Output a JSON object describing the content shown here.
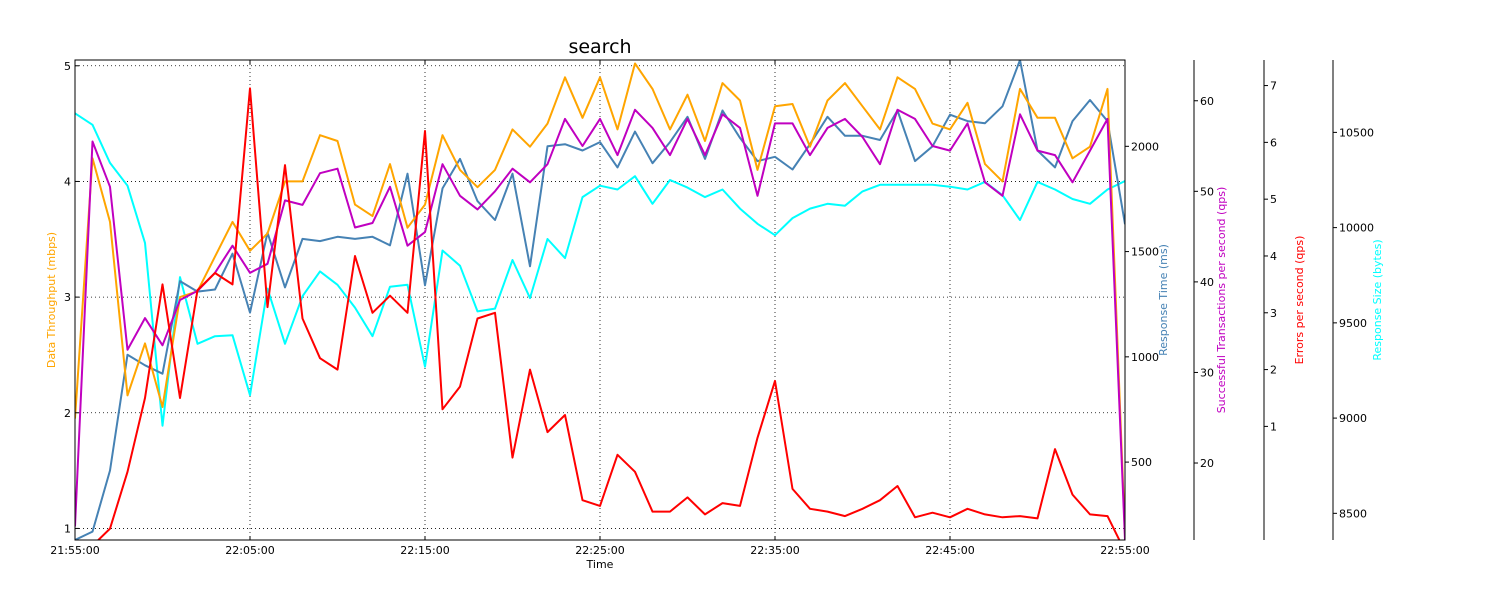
{
  "chart_data": {
    "type": "line",
    "title": "search",
    "xlabel": "Time",
    "x_ticks": [
      "21:55:00",
      "22:05:00",
      "22:15:00",
      "22:25:00",
      "22:35:00",
      "22:45:00",
      "22:55:00"
    ],
    "x_range_minutes": [
      0,
      60
    ],
    "grid": true,
    "axes": [
      {
        "id": "throughput",
        "label": "Data Throughput (mbps)",
        "color": "#ffa500",
        "range": [
          0.9,
          5.05
        ],
        "ticks": [
          "1",
          "2",
          "3",
          "4",
          "5"
        ]
      },
      {
        "id": "response_time",
        "label": "Response Time (ms)",
        "color": "#4682b4",
        "range": [
          130,
          2410
        ],
        "ticks": [
          "500",
          "1000",
          "1500",
          "2000"
        ]
      },
      {
        "id": "tps",
        "label": "Successful Transactions per second (qps)",
        "color": "#c000c0",
        "range": [
          11.5,
          64.5
        ],
        "ticks": [
          "20",
          "30",
          "40",
          "50",
          "60"
        ]
      },
      {
        "id": "errors",
        "label": "Errors per second (qps)",
        "color": "#ff0000",
        "range": [
          -1.0,
          7.45
        ],
        "ticks": [
          "1",
          "2",
          "3",
          "4",
          "5",
          "6",
          "7"
        ]
      },
      {
        "id": "size",
        "label": "Response Size (bytes)",
        "color": "#00ffff",
        "range": [
          8360,
          10880
        ],
        "ticks": [
          "8500",
          "9000",
          "9500",
          "10000",
          "10500"
        ]
      }
    ],
    "x": [
      0,
      1,
      2,
      3,
      4,
      5,
      6,
      7,
      8,
      9,
      10,
      11,
      12,
      13,
      14,
      15,
      16,
      17,
      18,
      19,
      20,
      21,
      22,
      23,
      24,
      25,
      26,
      27,
      28,
      29,
      30,
      31,
      32,
      33,
      34,
      35,
      36,
      37,
      38,
      39,
      40,
      41,
      42,
      43,
      44,
      45,
      46,
      47,
      48,
      49,
      50,
      51,
      52,
      53,
      54,
      55,
      56,
      57,
      58,
      59,
      60
    ],
    "series": [
      {
        "name": "Response Size (bytes)",
        "axis": "size",
        "color": "#00ffff",
        "values": [
          10600,
          10540,
          10340,
          10220,
          9920,
          8960,
          9740,
          9390,
          9430,
          9435,
          9120,
          9680,
          9390,
          9640,
          9770,
          9700,
          9580,
          9430,
          9690,
          9700,
          9270,
          9880,
          9800,
          9560,
          9575,
          9830,
          9630,
          9940,
          9840,
          10160,
          10220,
          10200,
          10270,
          10125,
          10250,
          10210,
          10160,
          10200,
          10100,
          10020,
          9960,
          10050,
          10100,
          10125,
          10115,
          10190,
          10225,
          10225,
          10225,
          10225,
          10215,
          10200,
          10240,
          10170,
          10040,
          10240,
          10200,
          10150,
          10125,
          10200,
          10245
        ]
      },
      {
        "name": "Response Time (ms)",
        "axis": "response_time",
        "color": "#4682b4",
        "values": [
          130,
          170,
          460,
          1010,
          960,
          920,
          1360,
          1310,
          1320,
          1490,
          1210,
          1590,
          1330,
          1560,
          1550,
          1570,
          1560,
          1570,
          1530,
          1870,
          1340,
          1800,
          1940,
          1740,
          1650,
          1870,
          1430,
          2000,
          2010,
          1980,
          2020,
          1900,
          2070,
          1920,
          2020,
          2140,
          1940,
          2170,
          2040,
          1930,
          1950,
          1890,
          2010,
          2140,
          2050,
          2050,
          2030,
          2170,
          1930,
          2000,
          2150,
          2120,
          2110,
          2190,
          2410,
          1980,
          1900,
          2120,
          2220,
          2120,
          1630
        ]
      },
      {
        "name": "Data Throughput (mbps)",
        "axis": "throughput",
        "color": "#ffa500",
        "values": [
          1.95,
          4.2,
          3.65,
          2.15,
          2.6,
          2.05,
          3.0,
          3.05,
          3.35,
          3.65,
          3.4,
          3.55,
          4.0,
          4.0,
          4.4,
          4.35,
          3.8,
          3.7,
          4.15,
          3.6,
          3.8,
          4.4,
          4.1,
          3.95,
          4.1,
          4.45,
          4.3,
          4.5,
          4.9,
          4.55,
          4.9,
          4.45,
          5.02,
          4.8,
          4.45,
          4.75,
          4.35,
          4.85,
          4.7,
          4.1,
          4.65,
          4.67,
          4.3,
          4.7,
          4.85,
          4.65,
          4.45,
          4.9,
          4.8,
          4.5,
          4.45,
          4.68,
          4.15,
          4.0,
          4.8,
          4.55,
          4.55,
          4.2,
          4.3,
          4.8,
          0.95
        ]
      },
      {
        "name": "Successful Transactions per second (qps)",
        "axis": "tps",
        "color": "#c000c0",
        "values": [
          13,
          55.5,
          50.5,
          32.5,
          36,
          33,
          38,
          39,
          41,
          44,
          41,
          42,
          49,
          48.5,
          52,
          52.5,
          46,
          46.5,
          50.5,
          44,
          45.5,
          53,
          49.5,
          48,
          50,
          52.5,
          51,
          53,
          58,
          55,
          58,
          54,
          59,
          57,
          54,
          58,
          54,
          58.5,
          57,
          49.5,
          57.5,
          57.5,
          54,
          57,
          58,
          56,
          53,
          59,
          58,
          55,
          54.5,
          57.5,
          51,
          49.5,
          58.5,
          54.5,
          54,
          51,
          54.5,
          58,
          11.5
        ]
      },
      {
        "name": "Errors per second (qps)",
        "axis": "errors",
        "color": "#ff0000",
        "values": [
          -1.2,
          -1.1,
          -0.8,
          0.2,
          1.5,
          3.5,
          1.5,
          3.4,
          3.7,
          3.5,
          6.95,
          3.1,
          5.6,
          2.9,
          2.2,
          2.0,
          4.0,
          3.0,
          3.3,
          3.0,
          6.2,
          1.3,
          1.7,
          2.9,
          3.0,
          0.45,
          2.0,
          0.9,
          1.2,
          -0.3,
          -0.4,
          0.5,
          0.2,
          -0.5,
          -0.5,
          -0.25,
          -0.55,
          -0.35,
          -0.4,
          0.8,
          1.8,
          -0.1,
          -0.45,
          -0.5,
          -0.58,
          -0.45,
          -0.3,
          -0.05,
          -0.6,
          -0.52,
          -0.6,
          -0.45,
          -0.55,
          -0.6,
          -0.58,
          -0.62,
          0.6,
          -0.2,
          -0.55,
          -0.58,
          -1.2
        ]
      }
    ]
  }
}
